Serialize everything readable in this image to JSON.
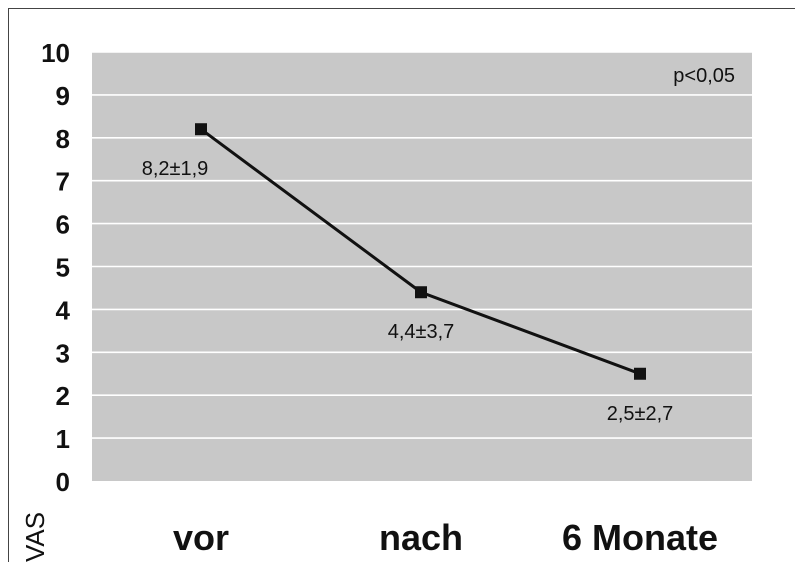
{
  "chart_data": {
    "type": "line",
    "title": "",
    "xlabel": "",
    "ylabel": "VAS",
    "categories": [
      "vor",
      "nach",
      "6 Monate"
    ],
    "series": [
      {
        "values": [
          8.2,
          4.4,
          2.5
        ]
      }
    ],
    "data_labels": [
      "8,2±1,9",
      "4,4±3,7",
      "2,5±2,7"
    ],
    "annotation": "p<0,05",
    "ylim": [
      0,
      10
    ],
    "yticks": [
      "0",
      "1",
      "2",
      "3",
      "4",
      "5",
      "6",
      "7",
      "8",
      "9",
      "10"
    ],
    "grid": true,
    "legend": "none",
    "colors": {
      "plot_bg": "#c8c8c8",
      "grid": "#ffffff",
      "line": "#111111",
      "marker": "#111111",
      "text": "#111111"
    }
  }
}
